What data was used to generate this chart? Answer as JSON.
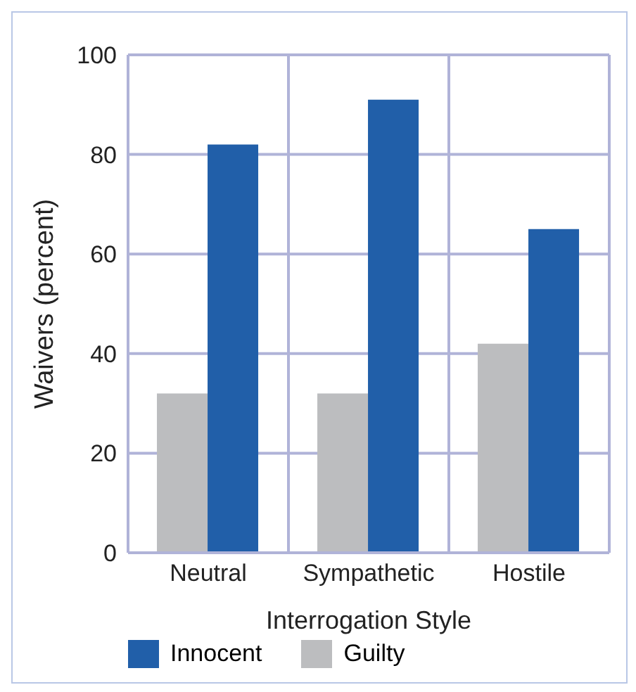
{
  "chart_data": {
    "type": "bar",
    "xlabel": "Interrogation Style",
    "ylabel": "Waivers (percent)",
    "categories": [
      "Neutral",
      "Sympathetic",
      "Hostile"
    ],
    "series": [
      {
        "name": "Guilty",
        "color": "#bcbdbf",
        "values": [
          32,
          32,
          42
        ]
      },
      {
        "name": "Innocent",
        "color": "#215fa9",
        "values": [
          82,
          91,
          65
        ]
      }
    ],
    "ylim": [
      0,
      100
    ],
    "yticks": [
      0,
      20,
      40,
      60,
      80,
      100
    ],
    "grid": true,
    "legend": "bottom"
  }
}
